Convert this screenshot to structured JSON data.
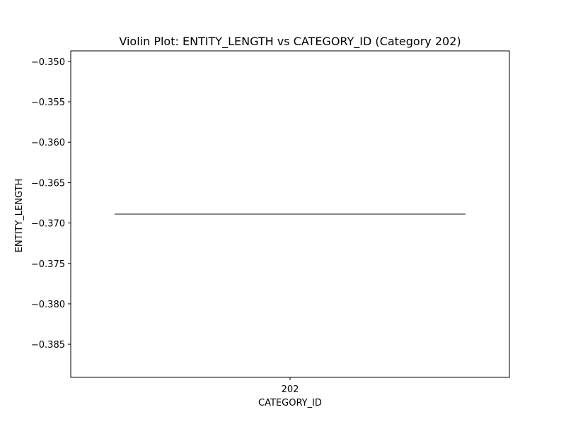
{
  "chart_data": {
    "type": "violin",
    "title": "Violin Plot: ENTITY_LENGTH vs CATEGORY_ID (Category 202)",
    "xlabel": "CATEGORY_ID",
    "ylabel": "ENTITY_LENGTH",
    "categories": [
      "202"
    ],
    "values": [
      -0.3689
    ],
    "ylim": [
      -0.3891,
      -0.3487
    ],
    "yticks": [
      -0.35,
      -0.355,
      -0.36,
      -0.365,
      -0.37,
      -0.375,
      -0.38,
      -0.385
    ],
    "ytick_labels": [
      "−0.350",
      "−0.355",
      "−0.360",
      "−0.365",
      "−0.370",
      "−0.375",
      "−0.380",
      "−0.385"
    ],
    "grid": false,
    "line_color": "#404040"
  }
}
